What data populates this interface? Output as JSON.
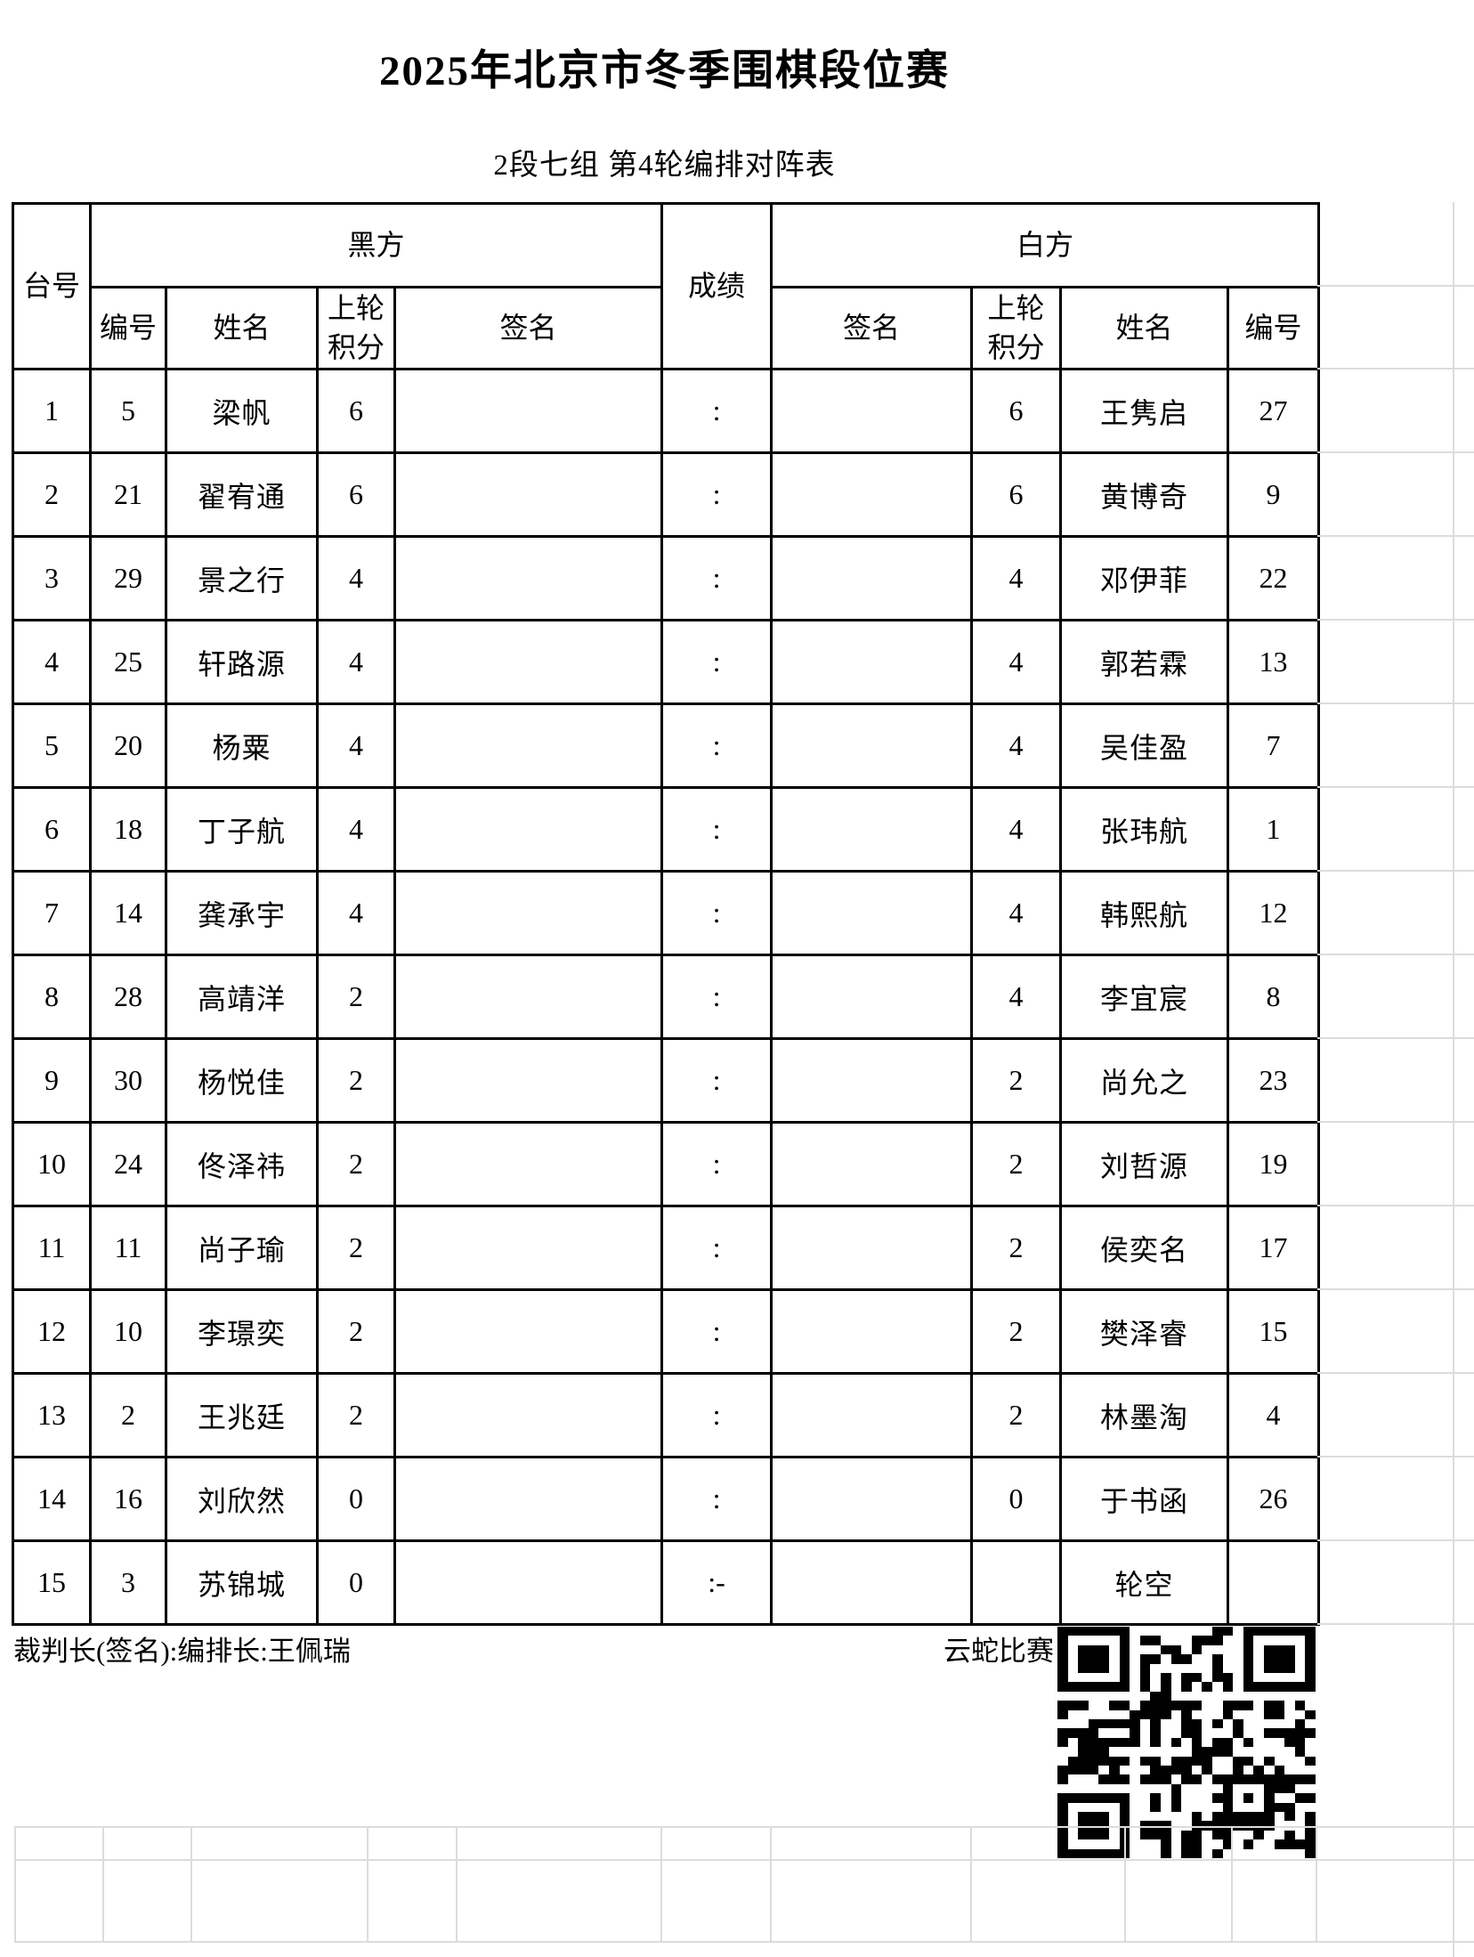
{
  "page": {
    "title": "2025年北京市冬季围棋段位赛",
    "subtitle": "2段七组 第4轮编排对阵表"
  },
  "table": {
    "headers": {
      "board": "台号",
      "black_side": "黑方",
      "score": "成绩",
      "white_side": "白方",
      "number": "编号",
      "name": "姓名",
      "prev_points": "上轮积分",
      "signature": "签名"
    },
    "rows": [
      {
        "board": "1",
        "black_no": "5",
        "black_name": "梁帆",
        "black_pts": "6",
        "black_sign": "",
        "score": ":",
        "white_sign": "",
        "white_pts": "6",
        "white_name": "王隽启",
        "white_no": "27"
      },
      {
        "board": "2",
        "black_no": "21",
        "black_name": "翟宥通",
        "black_pts": "6",
        "black_sign": "",
        "score": ":",
        "white_sign": "",
        "white_pts": "6",
        "white_name": "黄博奇",
        "white_no": "9"
      },
      {
        "board": "3",
        "black_no": "29",
        "black_name": "景之行",
        "black_pts": "4",
        "black_sign": "",
        "score": ":",
        "white_sign": "",
        "white_pts": "4",
        "white_name": "邓伊菲",
        "white_no": "22"
      },
      {
        "board": "4",
        "black_no": "25",
        "black_name": "轩路源",
        "black_pts": "4",
        "black_sign": "",
        "score": ":",
        "white_sign": "",
        "white_pts": "4",
        "white_name": "郭若霖",
        "white_no": "13"
      },
      {
        "board": "5",
        "black_no": "20",
        "black_name": "杨粟",
        "black_pts": "4",
        "black_sign": "",
        "score": ":",
        "white_sign": "",
        "white_pts": "4",
        "white_name": "吴佳盈",
        "white_no": "7"
      },
      {
        "board": "6",
        "black_no": "18",
        "black_name": "丁子航",
        "black_pts": "4",
        "black_sign": "",
        "score": ":",
        "white_sign": "",
        "white_pts": "4",
        "white_name": "张玮航",
        "white_no": "1"
      },
      {
        "board": "7",
        "black_no": "14",
        "black_name": "龚承宇",
        "black_pts": "4",
        "black_sign": "",
        "score": ":",
        "white_sign": "",
        "white_pts": "4",
        "white_name": "韩熙航",
        "white_no": "12"
      },
      {
        "board": "8",
        "black_no": "28",
        "black_name": "高靖洋",
        "black_pts": "2",
        "black_sign": "",
        "score": ":",
        "white_sign": "",
        "white_pts": "4",
        "white_name": "李宜宸",
        "white_no": "8"
      },
      {
        "board": "9",
        "black_no": "30",
        "black_name": "杨悦佳",
        "black_pts": "2",
        "black_sign": "",
        "score": ":",
        "white_sign": "",
        "white_pts": "2",
        "white_name": "尚允之",
        "white_no": "23"
      },
      {
        "board": "10",
        "black_no": "24",
        "black_name": "佟泽祎",
        "black_pts": "2",
        "black_sign": "",
        "score": ":",
        "white_sign": "",
        "white_pts": "2",
        "white_name": "刘哲源",
        "white_no": "19"
      },
      {
        "board": "11",
        "black_no": "11",
        "black_name": "尚子瑜",
        "black_pts": "2",
        "black_sign": "",
        "score": ":",
        "white_sign": "",
        "white_pts": "2",
        "white_name": "侯奕名",
        "white_no": "17"
      },
      {
        "board": "12",
        "black_no": "10",
        "black_name": "李璟奕",
        "black_pts": "2",
        "black_sign": "",
        "score": ":",
        "white_sign": "",
        "white_pts": "2",
        "white_name": "樊泽睿",
        "white_no": "15"
      },
      {
        "board": "13",
        "black_no": "2",
        "black_name": "王兆廷",
        "black_pts": "2",
        "black_sign": "",
        "score": ":",
        "white_sign": "",
        "white_pts": "2",
        "white_name": "林墨淘",
        "white_no": "4"
      },
      {
        "board": "14",
        "black_no": "16",
        "black_name": "刘欣然",
        "black_pts": "0",
        "black_sign": "",
        "score": ":",
        "white_sign": "",
        "white_pts": "0",
        "white_name": "于书函",
        "white_no": "26"
      },
      {
        "board": "15",
        "black_no": "3",
        "black_name": "苏锦城",
        "black_pts": "0",
        "black_sign": "",
        "score": ":-",
        "white_sign": "",
        "white_pts": "",
        "white_name": "轮空",
        "white_no": ""
      }
    ]
  },
  "footer": {
    "referee_line": "裁判长(签名):编排长:王佩瑞",
    "system_label": "云蛇比赛"
  },
  "icons": {
    "qr": "qr-code"
  },
  "colors": {
    "background": "#ffffff",
    "text": "#000000",
    "table_border": "#000000",
    "faint_grid": "#dcdcdc"
  }
}
